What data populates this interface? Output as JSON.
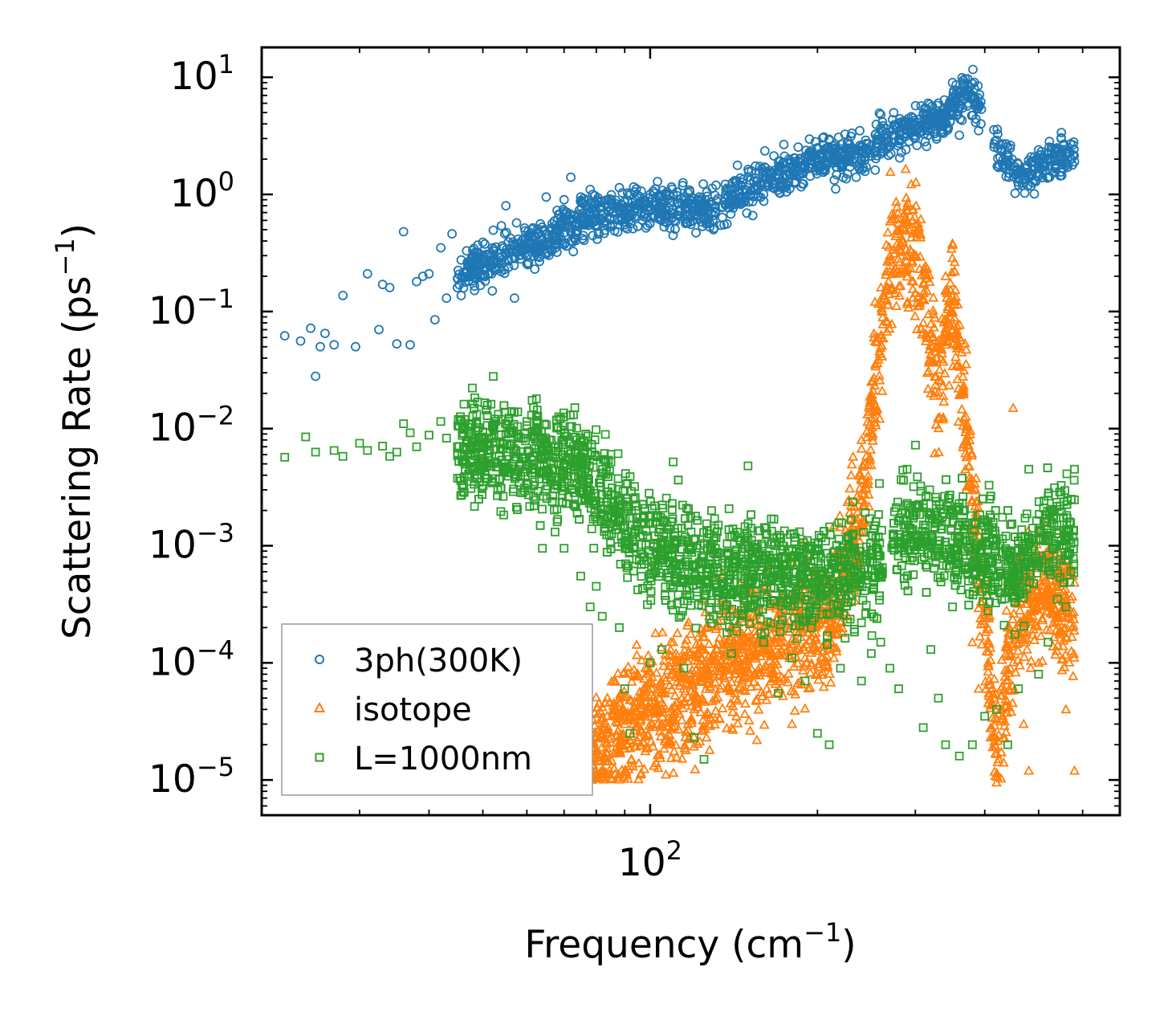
{
  "chart_data": {
    "type": "scatter",
    "xscale": "log",
    "yscale": "log",
    "xlabel": "Frequency (cm",
    "xlabel_sup": "−1",
    "xlabel_end": ")",
    "ylabel": "Scattering Rate (ps",
    "ylabel_sup": "−1",
    "ylabel_end": ")",
    "xlim": [
      20,
      700
    ],
    "ylim": [
      5e-06,
      18
    ],
    "x_ticks": [
      {
        "value": 100,
        "base": "10",
        "exp": "2"
      }
    ],
    "y_ticks": [
      {
        "value": 1e-05,
        "base": "10",
        "exp": "−5"
      },
      {
        "value": 0.0001,
        "base": "10",
        "exp": "−4"
      },
      {
        "value": 0.001,
        "base": "10",
        "exp": "−3"
      },
      {
        "value": 0.01,
        "base": "10",
        "exp": "−2"
      },
      {
        "value": 0.1,
        "base": "10",
        "exp": "−1"
      },
      {
        "value": 1,
        "base": "10",
        "exp": "0"
      },
      {
        "value": 10,
        "base": "10",
        "exp": "1"
      }
    ],
    "legend_position": "lower-left",
    "series": [
      {
        "name": "3ph(300K)",
        "marker": "circle",
        "color": "#1f77b4",
        "trend": [
          [
            22,
            0.06
          ],
          [
            30,
            0.08
          ],
          [
            40,
            0.15
          ],
          [
            50,
            0.25
          ],
          [
            60,
            0.35
          ],
          [
            80,
            0.7
          ],
          [
            100,
            0.75
          ],
          [
            130,
            0.8
          ],
          [
            160,
            1.3
          ],
          [
            200,
            2.0
          ],
          [
            240,
            2.2
          ],
          [
            280,
            3.5
          ],
          [
            330,
            4.5
          ],
          [
            380,
            7.5
          ],
          [
            420,
            2.6
          ],
          [
            470,
            1.4
          ],
          [
            520,
            2.0
          ],
          [
            580,
            2.2
          ]
        ],
        "points": [
          [
            22,
            0.062
          ],
          [
            23.5,
            0.056
          ],
          [
            24.5,
            0.072
          ],
          [
            25,
            0.028
          ],
          [
            25.5,
            0.05
          ],
          [
            26,
            0.065
          ],
          [
            27,
            0.052
          ],
          [
            28,
            0.137
          ],
          [
            29.5,
            0.05
          ],
          [
            31,
            0.21
          ],
          [
            32.5,
            0.07
          ],
          [
            33,
            0.17
          ],
          [
            34,
            0.16
          ],
          [
            35,
            0.053
          ],
          [
            36,
            0.48
          ],
          [
            37,
            0.052
          ],
          [
            38,
            0.18
          ],
          [
            39,
            0.2
          ],
          [
            40,
            0.21
          ],
          [
            41,
            0.085
          ],
          [
            42,
            0.35
          ],
          [
            43,
            0.13
          ],
          [
            44,
            0.46
          ],
          [
            45,
            0.16
          ],
          [
            46,
            0.2
          ],
          [
            48,
            0.26
          ],
          [
            50,
            0.39
          ],
          [
            52,
            0.15
          ],
          [
            54,
            0.54
          ],
          [
            55,
            0.8
          ],
          [
            57,
            0.13
          ],
          [
            60,
            0.35
          ],
          [
            62,
            0.23
          ],
          [
            65,
            0.95
          ],
          [
            68,
            0.73
          ],
          [
            70,
            0.9
          ],
          [
            72,
            1.4
          ],
          [
            75,
            0.95
          ],
          [
            78,
            1.1
          ],
          [
            80,
            0.72
          ],
          [
            85,
            0.75
          ],
          [
            90,
            0.55
          ],
          [
            95,
            0.65
          ],
          [
            100,
            1.0
          ],
          [
            110,
            0.68
          ],
          [
            120,
            0.92
          ],
          [
            130,
            0.5
          ],
          [
            140,
            1.1
          ],
          [
            150,
            1.4
          ],
          [
            160,
            1.0
          ],
          [
            170,
            1.6
          ],
          [
            180,
            1.6
          ],
          [
            190,
            2.1
          ],
          [
            200,
            2.5
          ],
          [
            210,
            2.9
          ],
          [
            220,
            2.0
          ],
          [
            230,
            2.3
          ],
          [
            240,
            2.0
          ],
          [
            260,
            4.8
          ],
          [
            270,
            2.6
          ],
          [
            280,
            4.0
          ],
          [
            300,
            3.0
          ],
          [
            320,
            5.0
          ],
          [
            340,
            4.0
          ],
          [
            350,
            9.0
          ],
          [
            360,
            3.2
          ],
          [
            380,
            7.0
          ],
          [
            390,
            3.5
          ],
          [
            420,
            2.9
          ],
          [
            440,
            2.2
          ],
          [
            450,
            1.6
          ],
          [
            460,
            1.2
          ],
          [
            480,
            1.4
          ],
          [
            500,
            2.4
          ],
          [
            520,
            2.0
          ],
          [
            540,
            2.5
          ],
          [
            560,
            2.2
          ],
          [
            580,
            1.9
          ]
        ]
      },
      {
        "name": "isotope",
        "marker": "triangle",
        "color": "#ff7f0e",
        "trend": [
          [
            75,
            1e-05
          ],
          [
            90,
            3e-05
          ],
          [
            110,
            5e-05
          ],
          [
            140,
            0.0001
          ],
          [
            180,
            0.0002
          ],
          [
            210,
            0.0002
          ],
          [
            240,
            0.002
          ],
          [
            270,
            0.3
          ],
          [
            300,
            0.4
          ],
          [
            330,
            0.02
          ],
          [
            350,
            0.15
          ],
          [
            380,
            0.003
          ],
          [
            420,
            2e-05
          ],
          [
            460,
            0.0003
          ],
          [
            520,
            0.0005
          ],
          [
            580,
            0.0002
          ]
        ],
        "points": [
          [
            75,
            1e-05
          ],
          [
            78,
            1.05e-05
          ],
          [
            82,
            1.2e-05
          ],
          [
            86,
            7e-05
          ],
          [
            88,
            4.5e-05
          ],
          [
            90,
            3e-05
          ],
          [
            95,
            8e-05
          ],
          [
            100,
            4.5e-05
          ],
          [
            105,
            4e-05
          ],
          [
            110,
            0.00015
          ],
          [
            115,
            6e-05
          ],
          [
            120,
            4e-05
          ],
          [
            125,
            0.00013
          ],
          [
            130,
            0.00012
          ],
          [
            135,
            0.00035
          ],
          [
            140,
            9e-05
          ],
          [
            150,
            0.00025
          ],
          [
            160,
            0.00045
          ],
          [
            170,
            0.00012
          ],
          [
            180,
            3e-05
          ],
          [
            190,
            0.00011
          ],
          [
            200,
            0.00045
          ],
          [
            210,
            0.0002
          ],
          [
            220,
            0.0003
          ],
          [
            230,
            0.004
          ],
          [
            240,
            0.008
          ],
          [
            250,
            0.025
          ],
          [
            260,
            0.06
          ],
          [
            270,
            0.3
          ],
          [
            280,
            0.5
          ],
          [
            290,
            0.6
          ],
          [
            300,
            0.3
          ],
          [
            310,
            0.08
          ],
          [
            320,
            0.02
          ],
          [
            330,
            0.05
          ],
          [
            340,
            0.2
          ],
          [
            350,
            0.38
          ],
          [
            360,
            0.05
          ],
          [
            370,
            0.003
          ],
          [
            380,
            0.00015
          ],
          [
            390,
            6e-05
          ],
          [
            420,
            9.5e-06
          ],
          [
            430,
            4e-05
          ],
          [
            440,
            0.0005
          ],
          [
            450,
            0.015
          ],
          [
            460,
            0.0008
          ],
          [
            470,
            3e-05
          ],
          [
            480,
            1.2e-05
          ],
          [
            500,
            0.0001
          ],
          [
            520,
            0.00045
          ],
          [
            540,
            0.00025
          ],
          [
            560,
            4e-05
          ],
          [
            580,
            1.2e-05
          ]
        ]
      },
      {
        "name": "L=1000nm",
        "marker": "square",
        "color": "#2ca02c",
        "trend": [
          [
            22,
            0.006
          ],
          [
            40,
            0.0065
          ],
          [
            60,
            0.006
          ],
          [
            75,
            0.005
          ],
          [
            90,
            0.0015
          ],
          [
            110,
            0.0008
          ],
          [
            140,
            0.0006
          ],
          [
            180,
            0.0006
          ],
          [
            220,
            0.0005
          ],
          [
            260,
            0.0008
          ],
          [
            300,
            0.0015
          ],
          [
            340,
            0.0012
          ],
          [
            380,
            0.0008
          ],
          [
            420,
            0.0008
          ],
          [
            460,
            0.0006
          ],
          [
            520,
            0.0015
          ],
          [
            580,
            0.0012
          ]
        ],
        "points": [
          [
            22,
            0.0057
          ],
          [
            24,
            0.0085
          ],
          [
            25,
            0.0063
          ],
          [
            27,
            0.0065
          ],
          [
            28,
            0.0058
          ],
          [
            30,
            0.0075
          ],
          [
            31,
            0.0065
          ],
          [
            33,
            0.0071
          ],
          [
            34,
            0.0058
          ],
          [
            35,
            0.0063
          ],
          [
            36,
            0.011
          ],
          [
            37,
            0.0092
          ],
          [
            38,
            0.007
          ],
          [
            40,
            0.0088
          ],
          [
            42,
            0.0115
          ],
          [
            43,
            0.0083
          ],
          [
            45,
            0.007
          ],
          [
            48,
            0.0072
          ],
          [
            50,
            0.0083
          ],
          [
            52,
            0.0105
          ],
          [
            55,
            0.009
          ],
          [
            58,
            0.0083
          ],
          [
            60,
            0.0115
          ],
          [
            62,
            0.0085
          ],
          [
            64,
            0.00095
          ],
          [
            65,
            0.0037
          ],
          [
            68,
            0.0016
          ],
          [
            70,
            0.00095
          ],
          [
            72,
            0.0065
          ],
          [
            75,
            0.00055
          ],
          [
            78,
            0.0003
          ],
          [
            80,
            0.00045
          ],
          [
            82,
            0.00025
          ],
          [
            85,
            0.0052
          ],
          [
            88,
            0.0002
          ],
          [
            90,
            6e-05
          ],
          [
            92,
            2.5e-05
          ],
          [
            95,
            0.00042
          ],
          [
            100,
            0.0001
          ],
          [
            105,
            0.00013
          ],
          [
            110,
            0.0052
          ],
          [
            115,
            9e-05
          ],
          [
            120,
            2.3e-05
          ],
          [
            125,
            1.5e-05
          ],
          [
            130,
            0.00025
          ],
          [
            140,
            0.00012
          ],
          [
            150,
            0.0048
          ],
          [
            160,
            0.00015
          ],
          [
            170,
            5.5e-05
          ],
          [
            180,
            0.00011
          ],
          [
            190,
            7e-05
          ],
          [
            200,
            2.5e-05
          ],
          [
            210,
            2e-05
          ],
          [
            220,
            9e-05
          ],
          [
            230,
            0.0006
          ],
          [
            240,
            7e-05
          ],
          [
            250,
            0.00012
          ],
          [
            260,
            0.00015
          ],
          [
            270,
            9e-05
          ],
          [
            280,
            6e-05
          ],
          [
            290,
            0.0045
          ],
          [
            300,
            0.0022
          ],
          [
            310,
            2.8e-05
          ],
          [
            320,
            0.00013
          ],
          [
            330,
            5e-05
          ],
          [
            340,
            2e-05
          ],
          [
            350,
            0.0003
          ],
          [
            360,
            1.6e-05
          ],
          [
            380,
            2e-05
          ],
          [
            400,
            3.5e-05
          ],
          [
            420,
            4e-05
          ],
          [
            440,
            2e-05
          ],
          [
            460,
            6e-05
          ],
          [
            480,
            0.0045
          ],
          [
            500,
            8e-05
          ],
          [
            520,
            0.00015
          ],
          [
            540,
            0.00035
          ],
          [
            560,
            0.0003
          ],
          [
            580,
            0.0045
          ]
        ]
      }
    ]
  }
}
